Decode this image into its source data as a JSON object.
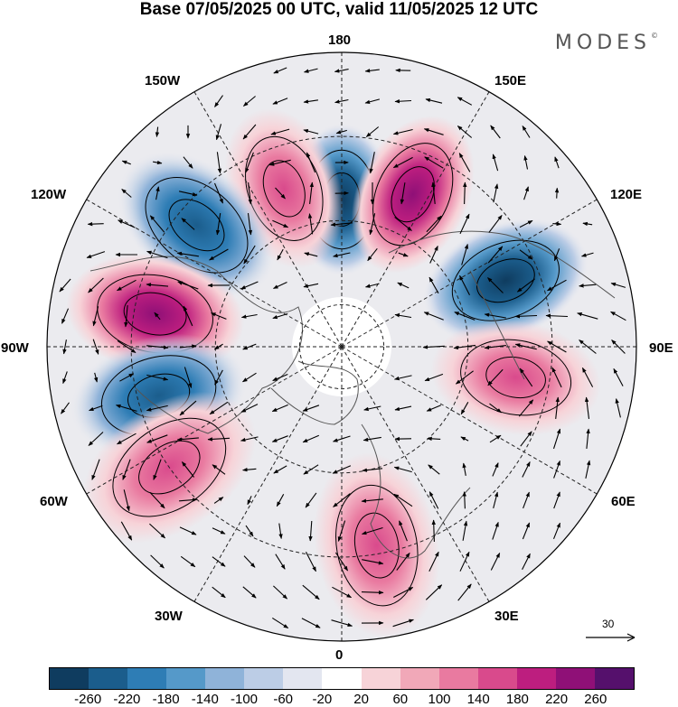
{
  "title": "Base 07/05/2025 00 UTC, valid 11/05/2025 12 UTC",
  "brand": "MODES",
  "brand_mark": "©",
  "longitudes": {
    "n180": "180",
    "e150": "150E",
    "e120": "120E",
    "e90": "90E",
    "e60": "60E",
    "e30": "30E",
    "zero": "0",
    "w30": "30W",
    "w60": "60W",
    "w90": "90W",
    "w120": "120W",
    "w150": "150W"
  },
  "reference_vector": "30",
  "colorbar": {
    "colors": [
      "#0f3c5f",
      "#1b5d8c",
      "#2e7db5",
      "#5599c9",
      "#8fb3d9",
      "#bccde6",
      "#e3e6f0",
      "#ffffff",
      "#f7d3d8",
      "#f1a8b8",
      "#e97aa0",
      "#d94a8c",
      "#bd1e7f",
      "#8f1077",
      "#55106c"
    ],
    "ticks": [
      "-260",
      "-220",
      "-180",
      "-140",
      "-100",
      "-60",
      "-20",
      "20",
      "60",
      "100",
      "140",
      "180",
      "220",
      "260"
    ]
  },
  "anomaly_centers": [
    {
      "name": "anomaly-180",
      "lat": 55,
      "lon": 180,
      "value": -260,
      "color": "#1b5d8c"
    },
    {
      "name": "anomaly-155e",
      "lat": 50,
      "lon": 155,
      "value": 220,
      "color": "#bd1e7f"
    },
    {
      "name": "anomaly-112e",
      "lat": 48,
      "lon": 112,
      "value": -220,
      "color": "#1b5d8c"
    },
    {
      "name": "anomaly-160w",
      "lat": 50,
      "lon": -160,
      "value": 180,
      "color": "#d94a8c"
    },
    {
      "name": "anomaly-130w",
      "lat": 45,
      "lon": -130,
      "value": -180,
      "color": "#2e7db5"
    },
    {
      "name": "anomaly-100w",
      "lat": 45,
      "lon": -100,
      "value": 220,
      "color": "#bd1e7f"
    },
    {
      "name": "anomaly-75w",
      "lat": 45,
      "lon": -75,
      "value": -180,
      "color": "#2e7db5"
    },
    {
      "name": "anomaly-55w",
      "lat": 40,
      "lon": -55,
      "value": 180,
      "color": "#d94a8c"
    },
    {
      "name": "anomaly-10e",
      "lat": 42,
      "lon": 10,
      "value": 180,
      "color": "#d94a8c"
    },
    {
      "name": "anomaly-80e",
      "lat": 48,
      "lon": 80,
      "value": 140,
      "color": "#e97aa0"
    }
  ]
}
